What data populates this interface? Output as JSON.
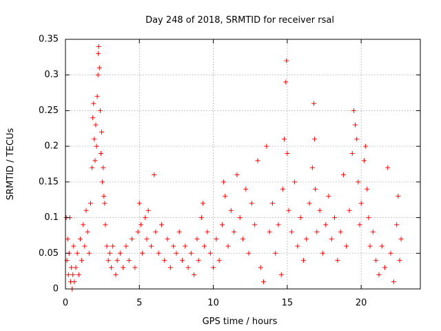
{
  "chart_data": {
    "type": "scatter",
    "title": "Day 248 of 2018, SRMTID for receiver rsal",
    "xlabel": "GPS time / hours",
    "ylabel": "SRMTID / TECUs",
    "xlim": [
      0,
      24
    ],
    "ylim": [
      0,
      0.35
    ],
    "xticks": [
      0,
      5,
      10,
      15,
      20
    ],
    "xtick_labels": [
      "0",
      "5",
      "10",
      "15",
      "20"
    ],
    "yticks": [
      0,
      0.05,
      0.1,
      0.15,
      0.2,
      0.25,
      0.3,
      0.35
    ],
    "ytick_labels": [
      "0",
      "0.05",
      "0.1",
      "0.15",
      "0.2",
      "0.25",
      "0.3",
      "0.35"
    ],
    "grid": true,
    "marker": "+",
    "color": "#ff0000",
    "series": [
      {
        "name": "SRMTID",
        "points": [
          [
            0.05,
            0.1
          ],
          [
            0.1,
            0.04
          ],
          [
            0.15,
            0.07
          ],
          [
            0.2,
            0.02
          ],
          [
            0.25,
            0.05
          ],
          [
            0.3,
            0.1
          ],
          [
            0.35,
            0.01
          ],
          [
            0.4,
            0.03
          ],
          [
            0.45,
            0.0
          ],
          [
            0.5,
            0.02
          ],
          [
            0.55,
            0.06
          ],
          [
            0.6,
            0.01
          ],
          [
            0.7,
            0.03
          ],
          [
            0.8,
            0.05
          ],
          [
            0.9,
            0.02
          ],
          [
            1.0,
            0.07
          ],
          [
            1.1,
            0.04
          ],
          [
            1.2,
            0.09
          ],
          [
            1.3,
            0.06
          ],
          [
            1.4,
            0.11
          ],
          [
            1.5,
            0.08
          ],
          [
            1.6,
            0.05
          ],
          [
            1.7,
            0.12
          ],
          [
            1.8,
            0.17
          ],
          [
            1.85,
            0.24
          ],
          [
            1.9,
            0.26
          ],
          [
            1.95,
            0.21
          ],
          [
            2.0,
            0.18
          ],
          [
            2.05,
            0.23
          ],
          [
            2.1,
            0.2
          ],
          [
            2.15,
            0.27
          ],
          [
            2.2,
            0.3
          ],
          [
            2.22,
            0.33
          ],
          [
            2.25,
            0.34
          ],
          [
            2.3,
            0.31
          ],
          [
            2.35,
            0.25
          ],
          [
            2.4,
            0.19
          ],
          [
            2.45,
            0.22
          ],
          [
            2.5,
            0.15
          ],
          [
            2.55,
            0.17
          ],
          [
            2.6,
            0.13
          ],
          [
            2.65,
            0.12
          ],
          [
            2.7,
            0.09
          ],
          [
            2.8,
            0.06
          ],
          [
            2.9,
            0.04
          ],
          [
            3.0,
            0.05
          ],
          [
            3.1,
            0.03
          ],
          [
            3.2,
            0.06
          ],
          [
            3.4,
            0.02
          ],
          [
            3.5,
            0.04
          ],
          [
            3.7,
            0.05
          ],
          [
            3.9,
            0.03
          ],
          [
            4.1,
            0.06
          ],
          [
            4.3,
            0.04
          ],
          [
            4.5,
            0.07
          ],
          [
            4.7,
            0.03
          ],
          [
            4.9,
            0.08
          ],
          [
            5.0,
            0.12
          ],
          [
            5.1,
            0.09
          ],
          [
            5.2,
            0.05
          ],
          [
            5.4,
            0.1
          ],
          [
            5.5,
            0.07
          ],
          [
            5.6,
            0.11
          ],
          [
            5.8,
            0.06
          ],
          [
            6.0,
            0.16
          ],
          [
            6.1,
            0.08
          ],
          [
            6.3,
            0.05
          ],
          [
            6.5,
            0.09
          ],
          [
            6.7,
            0.04
          ],
          [
            6.9,
            0.07
          ],
          [
            7.1,
            0.03
          ],
          [
            7.3,
            0.06
          ],
          [
            7.5,
            0.05
          ],
          [
            7.7,
            0.08
          ],
          [
            7.9,
            0.04
          ],
          [
            8.1,
            0.06
          ],
          [
            8.3,
            0.03
          ],
          [
            8.5,
            0.05
          ],
          [
            8.7,
            0.02
          ],
          [
            8.9,
            0.07
          ],
          [
            9.0,
            0.04
          ],
          [
            9.2,
            0.1
          ],
          [
            9.3,
            0.12
          ],
          [
            9.4,
            0.06
          ],
          [
            9.6,
            0.08
          ],
          [
            9.8,
            0.05
          ],
          [
            10.0,
            0.03
          ],
          [
            10.2,
            0.07
          ],
          [
            10.4,
            0.04
          ],
          [
            10.6,
            0.09
          ],
          [
            10.7,
            0.15
          ],
          [
            10.8,
            0.13
          ],
          [
            11.0,
            0.06
          ],
          [
            11.2,
            0.11
          ],
          [
            11.4,
            0.08
          ],
          [
            11.6,
            0.16
          ],
          [
            11.8,
            0.1
          ],
          [
            12.0,
            0.07
          ],
          [
            12.2,
            0.14
          ],
          [
            12.4,
            0.05
          ],
          [
            12.6,
            0.12
          ],
          [
            12.8,
            0.09
          ],
          [
            13.0,
            0.18
          ],
          [
            13.2,
            0.03
          ],
          [
            13.4,
            0.01
          ],
          [
            13.6,
            0.2
          ],
          [
            13.8,
            0.08
          ],
          [
            14.0,
            0.12
          ],
          [
            14.2,
            0.05
          ],
          [
            14.4,
            0.09
          ],
          [
            14.6,
            0.02
          ],
          [
            14.7,
            0.14
          ],
          [
            14.8,
            0.21
          ],
          [
            14.9,
            0.29
          ],
          [
            14.95,
            0.32
          ],
          [
            15.0,
            0.19
          ],
          [
            15.1,
            0.11
          ],
          [
            15.3,
            0.08
          ],
          [
            15.5,
            0.15
          ],
          [
            15.7,
            0.06
          ],
          [
            15.9,
            0.1
          ],
          [
            16.1,
            0.04
          ],
          [
            16.3,
            0.07
          ],
          [
            16.5,
            0.12
          ],
          [
            16.7,
            0.17
          ],
          [
            16.8,
            0.26
          ],
          [
            16.85,
            0.21
          ],
          [
            16.9,
            0.14
          ],
          [
            17.0,
            0.08
          ],
          [
            17.2,
            0.11
          ],
          [
            17.4,
            0.05
          ],
          [
            17.6,
            0.09
          ],
          [
            17.8,
            0.13
          ],
          [
            18.0,
            0.07
          ],
          [
            18.2,
            0.1
          ],
          [
            18.4,
            0.04
          ],
          [
            18.6,
            0.08
          ],
          [
            18.8,
            0.16
          ],
          [
            19.0,
            0.06
          ],
          [
            19.2,
            0.11
          ],
          [
            19.4,
            0.19
          ],
          [
            19.5,
            0.25
          ],
          [
            19.6,
            0.23
          ],
          [
            19.7,
            0.21
          ],
          [
            19.8,
            0.15
          ],
          [
            19.9,
            0.09
          ],
          [
            20.0,
            0.12
          ],
          [
            20.2,
            0.18
          ],
          [
            20.3,
            0.2
          ],
          [
            20.4,
            0.14
          ],
          [
            20.5,
            0.1
          ],
          [
            20.6,
            0.06
          ],
          [
            20.8,
            0.08
          ],
          [
            21.0,
            0.04
          ],
          [
            21.2,
            0.02
          ],
          [
            21.4,
            0.06
          ],
          [
            21.6,
            0.03
          ],
          [
            21.8,
            0.17
          ],
          [
            22.0,
            0.05
          ],
          [
            22.2,
            0.01
          ],
          [
            22.4,
            0.09
          ],
          [
            22.5,
            0.13
          ],
          [
            22.6,
            0.04
          ],
          [
            22.7,
            0.07
          ]
        ]
      }
    ]
  }
}
